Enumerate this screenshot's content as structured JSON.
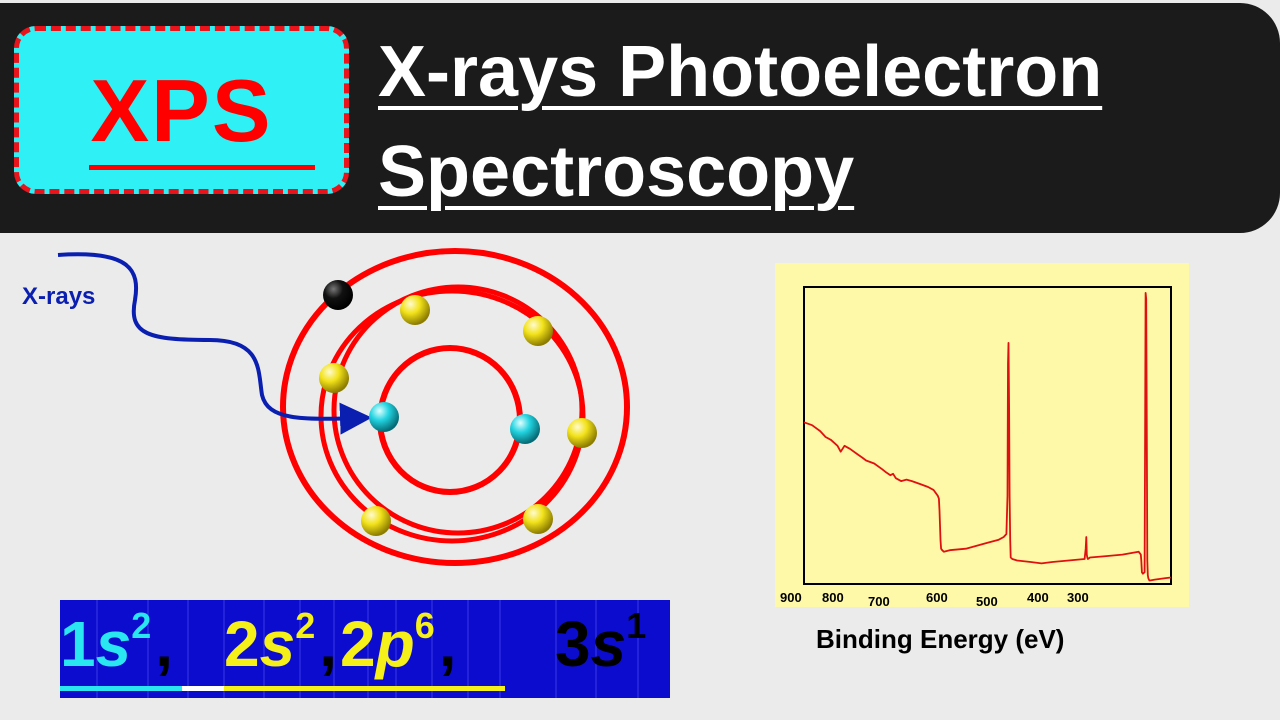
{
  "header": {
    "logo": "XPS",
    "title_line1": "X-rays Photoelectron",
    "title_line2": "Spectroscopy"
  },
  "atom_diagram": {
    "incoming_label": "X-rays",
    "colors": {
      "orbit": "#ff0000",
      "arrow": "#0a1fb0",
      "core_electron": "#22d3e0",
      "valence_electron": "#f2e21a",
      "ejected_electron": "#000000"
    }
  },
  "electron_configuration": {
    "terms": [
      {
        "shell": "1",
        "orbital": "s",
        "sup": "2",
        "sep": ",",
        "color": "#29e6f0"
      },
      {
        "shell": "2",
        "orbital": "s",
        "sup": "2",
        "sep": ",",
        "color": "#f5ef1a"
      },
      {
        "shell": "2",
        "orbital": "p",
        "sup": "6",
        "sep": ",",
        "color": "#f5ef1a"
      },
      {
        "shell": "3",
        "orbital": "s",
        "sup": "1",
        "sep": "",
        "color": "#000000"
      }
    ]
  },
  "chart_data": {
    "type": "line",
    "xlabel": "Binding Energy (eV)",
    "ylabel": "",
    "x_tick_labels": [
      "900",
      "800",
      "700",
      "600",
      "500",
      "400",
      "300"
    ],
    "xlim": [
      920,
      240
    ],
    "x_reversed": true,
    "series": [
      {
        "color": "#e01010",
        "x": [
          920,
          905,
          890,
          880,
          870,
          858,
          852,
          845,
          835,
          820,
          812,
          805,
          790,
          775,
          768,
          760,
          755,
          750,
          740,
          730,
          720,
          705,
          690,
          680,
          672,
          670,
          669,
          668,
          667,
          666,
          664,
          661,
          650,
          620,
          600,
          580,
          560,
          550,
          545,
          543,
          542,
          541,
          540,
          539,
          538,
          537,
          534,
          525,
          500,
          480,
          460,
          430,
          400,
          398,
          397,
          396,
          395,
          394,
          390,
          360,
          330,
          300,
          296,
          295,
          294,
          292,
          289,
          288,
          287,
          286,
          285,
          284,
          283,
          282,
          281,
          280,
          279,
          270,
          250,
          240
        ],
        "y": [
          0.55,
          0.54,
          0.52,
          0.5,
          0.49,
          0.47,
          0.45,
          0.47,
          0.46,
          0.44,
          0.43,
          0.42,
          0.41,
          0.39,
          0.38,
          0.37,
          0.375,
          0.36,
          0.35,
          0.355,
          0.35,
          0.34,
          0.33,
          0.32,
          0.3,
          0.29,
          0.25,
          0.2,
          0.15,
          0.12,
          0.115,
          0.11,
          0.115,
          0.12,
          0.13,
          0.14,
          0.15,
          0.16,
          0.17,
          0.3,
          0.75,
          0.82,
          0.6,
          0.3,
          0.15,
          0.09,
          0.085,
          0.08,
          0.075,
          0.07,
          0.075,
          0.08,
          0.085,
          0.12,
          0.16,
          0.1,
          0.09,
          0.085,
          0.09,
          0.095,
          0.1,
          0.11,
          0.1,
          0.08,
          0.04,
          0.035,
          0.04,
          0.5,
          0.99,
          0.97,
          0.6,
          0.08,
          0.03,
          0.02,
          0.015,
          0.012,
          0.012,
          0.015,
          0.02,
          0.022
        ]
      }
    ]
  }
}
